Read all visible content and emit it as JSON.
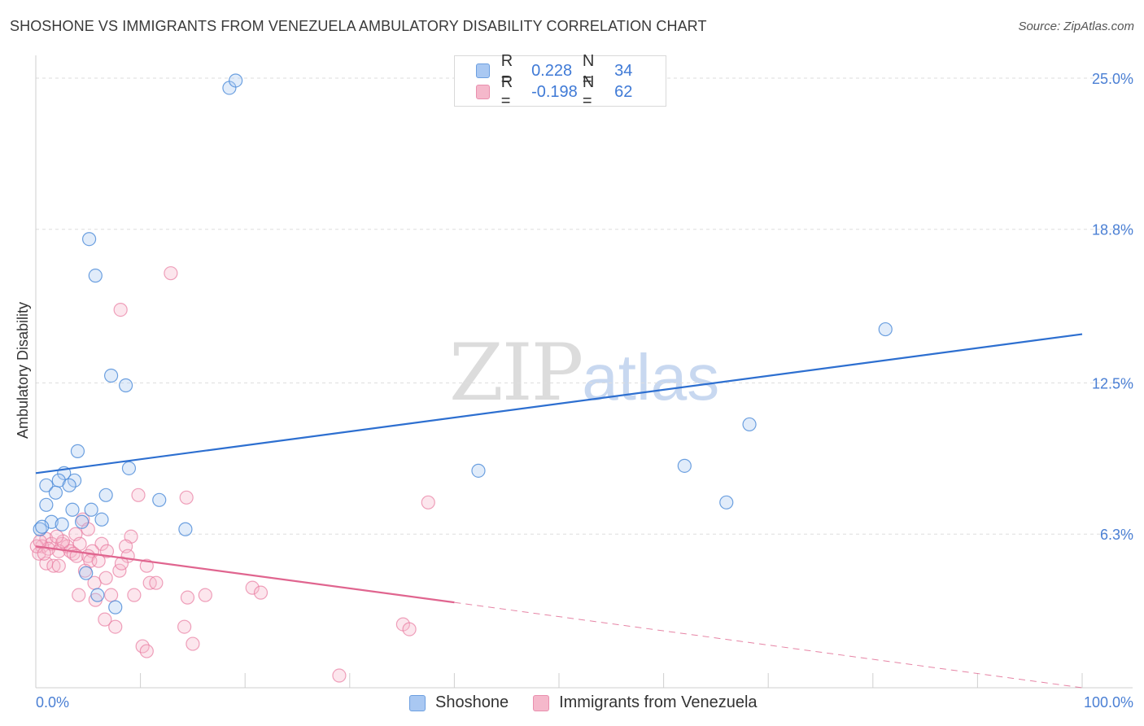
{
  "title": "SHOSHONE VS IMMIGRANTS FROM VENEZUELA AMBULATORY DISABILITY CORRELATION CHART",
  "source": "Source: ZipAtlas.com",
  "watermark": {
    "zip": "ZIP",
    "atlas": "atlas"
  },
  "legend": {
    "rows": [
      {
        "r_label": "R =",
        "r_value": "0.228",
        "n_label": "N =",
        "n_value": "34",
        "color": "#a9c8f2"
      },
      {
        "r_label": "R =",
        "r_value": "-0.198",
        "n_label": "N =",
        "n_value": "62",
        "color": "#f5b8cb"
      }
    ]
  },
  "bottom_legend": [
    "Shoshone",
    "Immigrants from Venezuela"
  ],
  "chart_data": {
    "type": "scatter",
    "title": "SHOSHONE VS IMMIGRANTS FROM VENEZUELA AMBULATORY DISABILITY CORRELATION CHART",
    "xlabel": "",
    "ylabel": "Ambulatory Disability",
    "xlim": [
      0,
      100
    ],
    "ylim": [
      0,
      25.6
    ],
    "x_tick_labels": [
      "0.0%",
      "100.0%"
    ],
    "y_ticks": [
      6.3,
      12.5,
      18.8,
      25.0
    ],
    "y_tick_labels": [
      "6.3%",
      "12.5%",
      "18.8%",
      "25.0%"
    ],
    "colors": {
      "shoshone": "#4a8ad8",
      "venezuela": "#e87aa0",
      "shoshone_line": "#2d6fd0",
      "venezuela_line": "#e0658f"
    },
    "series": [
      {
        "name": "Shoshone",
        "points": [
          [
            18.5,
            24.6
          ],
          [
            19.1,
            24.9
          ],
          [
            5.1,
            18.4
          ],
          [
            5.7,
            16.9
          ],
          [
            7.2,
            12.8
          ],
          [
            8.6,
            12.4
          ],
          [
            81.2,
            14.7
          ],
          [
            68.2,
            10.8
          ],
          [
            42.3,
            8.9
          ],
          [
            62.0,
            9.1
          ],
          [
            66.0,
            7.6
          ],
          [
            4.0,
            9.7
          ],
          [
            8.9,
            9.0
          ],
          [
            2.7,
            8.8
          ],
          [
            2.2,
            8.5
          ],
          [
            3.7,
            8.5
          ],
          [
            1.0,
            8.3
          ],
          [
            3.2,
            8.3
          ],
          [
            1.9,
            8.0
          ],
          [
            6.7,
            7.9
          ],
          [
            11.8,
            7.7
          ],
          [
            1.0,
            7.5
          ],
          [
            3.5,
            7.3
          ],
          [
            5.3,
            7.3
          ],
          [
            1.5,
            6.8
          ],
          [
            2.5,
            6.7
          ],
          [
            4.4,
            6.8
          ],
          [
            6.3,
            6.9
          ],
          [
            14.3,
            6.5
          ],
          [
            0.4,
            6.5
          ],
          [
            0.6,
            6.6
          ],
          [
            4.8,
            4.7
          ],
          [
            5.9,
            3.8
          ],
          [
            7.6,
            3.3
          ]
        ],
        "trend": {
          "x0": 0,
          "y0": 8.8,
          "x1": 100,
          "y1": 14.5
        }
      },
      {
        "name": "Immigrants from Venezuela",
        "points": [
          [
            12.9,
            17.0
          ],
          [
            8.1,
            15.5
          ],
          [
            37.5,
            7.6
          ],
          [
            14.4,
            7.8
          ],
          [
            9.8,
            7.9
          ],
          [
            4.5,
            6.9
          ],
          [
            5.0,
            6.5
          ],
          [
            1.0,
            6.1
          ],
          [
            3.8,
            6.3
          ],
          [
            9.1,
            6.2
          ],
          [
            1.5,
            5.9
          ],
          [
            2.5,
            5.9
          ],
          [
            0.6,
            5.8
          ],
          [
            3.0,
            5.8
          ],
          [
            4.2,
            5.9
          ],
          [
            6.3,
            5.9
          ],
          [
            8.6,
            5.8
          ],
          [
            2.2,
            5.6
          ],
          [
            3.3,
            5.6
          ],
          [
            5.4,
            5.6
          ],
          [
            0.3,
            5.5
          ],
          [
            3.6,
            5.5
          ],
          [
            5.0,
            5.4
          ],
          [
            8.8,
            5.4
          ],
          [
            1.0,
            5.1
          ],
          [
            1.7,
            5.0
          ],
          [
            2.2,
            5.0
          ],
          [
            5.2,
            5.2
          ],
          [
            10.6,
            5.0
          ],
          [
            4.7,
            4.8
          ],
          [
            8.0,
            4.8
          ],
          [
            6.7,
            4.5
          ],
          [
            5.6,
            4.3
          ],
          [
            10.9,
            4.3
          ],
          [
            11.5,
            4.3
          ],
          [
            20.7,
            4.1
          ],
          [
            21.5,
            3.9
          ],
          [
            4.1,
            3.8
          ],
          [
            7.2,
            3.8
          ],
          [
            9.4,
            3.8
          ],
          [
            14.5,
            3.7
          ],
          [
            16.2,
            3.8
          ],
          [
            5.7,
            3.6
          ],
          [
            6.6,
            2.8
          ],
          [
            7.6,
            2.5
          ],
          [
            14.2,
            2.5
          ],
          [
            35.1,
            2.6
          ],
          [
            35.7,
            2.4
          ],
          [
            10.2,
            1.7
          ],
          [
            10.6,
            1.5
          ],
          [
            15.0,
            1.8
          ],
          [
            29.0,
            0.5
          ],
          [
            0.1,
            5.8
          ],
          [
            1.2,
            5.7
          ],
          [
            0.4,
            6.0
          ],
          [
            2.6,
            6.0
          ],
          [
            6.0,
            5.2
          ],
          [
            0.8,
            5.5
          ],
          [
            3.9,
            5.4
          ],
          [
            8.2,
            5.1
          ],
          [
            2.0,
            6.2
          ],
          [
            6.8,
            5.6
          ]
        ],
        "trend": {
          "x0": 0,
          "y0": 5.8,
          "x1": 40,
          "y1": 3.5
        },
        "trend_dashed": {
          "x0": 40,
          "y0": 3.5,
          "x1": 100,
          "y1": 0.0
        }
      }
    ]
  }
}
